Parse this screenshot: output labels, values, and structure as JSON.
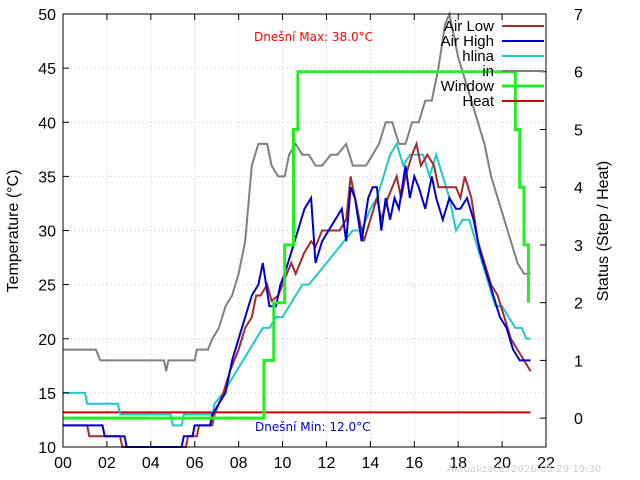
{
  "chart_data": {
    "type": "line",
    "xlabel": "",
    "ylabel": "Temperature (°C)",
    "y2label": "Status (Step / Heat)",
    "xlim": [
      0,
      22
    ],
    "ylim": [
      10,
      50
    ],
    "y2lim": [
      -0.5,
      7
    ],
    "xticks": [
      "00",
      "02",
      "04",
      "06",
      "08",
      "10",
      "12",
      "14",
      "16",
      "18",
      "20",
      "22"
    ],
    "yticks": [
      "10",
      "15",
      "20",
      "25",
      "30",
      "35",
      "40",
      "45",
      "50"
    ],
    "y2ticks": [
      "0",
      "1",
      "2",
      "3",
      "4",
      "5",
      "6",
      "7"
    ],
    "grid": true,
    "legend_position": "top-right",
    "annotations": {
      "max_label": "Dnešní Max: 38.0°C",
      "min_label": "Dnešní Min: 12.0°C",
      "updated": "Aktualizace: 2026-05-29 19:30"
    },
    "colors": {
      "air_low": "#a52a2a",
      "air_high": "#0000cd",
      "hlina": "#20c8c8",
      "in": "#808080",
      "window": "#22ee22",
      "heat": "#cc0000",
      "max_label": "#ff0000",
      "min_label": "#0000cd"
    },
    "series": [
      {
        "name": "Air Low",
        "axis": "y1",
        "key": "air_low",
        "points": [
          [
            0,
            12
          ],
          [
            1.1,
            12
          ],
          [
            1.2,
            11
          ],
          [
            2.6,
            11
          ],
          [
            2.7,
            10
          ],
          [
            4.3,
            10
          ],
          [
            4.4,
            9.8
          ],
          [
            5.6,
            9.8
          ],
          [
            5.7,
            11
          ],
          [
            6.1,
            11
          ],
          [
            6.2,
            12
          ],
          [
            6.8,
            12
          ],
          [
            6.9,
            13
          ],
          [
            7.3,
            15
          ],
          [
            7.6,
            17
          ],
          [
            8.0,
            19
          ],
          [
            8.3,
            21
          ],
          [
            8.6,
            22
          ],
          [
            8.8,
            24
          ],
          [
            9.0,
            24
          ],
          [
            9.3,
            25
          ],
          [
            9.5,
            23.5
          ],
          [
            9.8,
            24
          ],
          [
            10.0,
            25
          ],
          [
            10.2,
            26
          ],
          [
            10.4,
            27
          ],
          [
            10.6,
            26
          ],
          [
            10.8,
            27
          ],
          [
            11.0,
            28
          ],
          [
            11.3,
            29
          ],
          [
            11.5,
            28.5
          ],
          [
            11.8,
            30
          ],
          [
            12.3,
            30
          ],
          [
            12.6,
            30
          ],
          [
            12.9,
            31
          ],
          [
            13.1,
            35
          ],
          [
            13.4,
            32
          ],
          [
            13.7,
            29
          ],
          [
            14.0,
            31
          ],
          [
            14.3,
            33
          ],
          [
            14.5,
            31
          ],
          [
            14.8,
            33
          ],
          [
            15.0,
            34
          ],
          [
            15.2,
            35
          ],
          [
            15.4,
            33
          ],
          [
            15.6,
            35
          ],
          [
            15.9,
            37
          ],
          [
            16.1,
            38
          ],
          [
            16.3,
            36
          ],
          [
            16.6,
            37
          ],
          [
            16.9,
            36
          ],
          [
            17.1,
            34
          ],
          [
            17.4,
            34
          ],
          [
            17.9,
            34
          ],
          [
            18.1,
            33
          ],
          [
            18.3,
            35
          ],
          [
            18.6,
            33
          ],
          [
            18.9,
            29
          ],
          [
            19.2,
            27
          ],
          [
            19.5,
            25
          ],
          [
            19.8,
            24
          ],
          [
            20.1,
            22
          ],
          [
            20.4,
            20
          ],
          [
            20.7,
            19
          ],
          [
            21.0,
            18
          ],
          [
            21.3,
            17
          ]
        ]
      },
      {
        "name": "Air High",
        "axis": "y1",
        "key": "air_high",
        "points": [
          [
            0,
            12
          ],
          [
            1.8,
            12
          ],
          [
            1.9,
            11
          ],
          [
            2.8,
            11
          ],
          [
            2.9,
            10
          ],
          [
            4.3,
            10
          ],
          [
            4.4,
            9.8
          ],
          [
            5.4,
            9.8
          ],
          [
            5.5,
            11
          ],
          [
            5.9,
            11
          ],
          [
            6.0,
            12
          ],
          [
            6.7,
            12
          ],
          [
            6.8,
            13
          ],
          [
            7.1,
            14
          ],
          [
            7.4,
            15
          ],
          [
            7.7,
            18
          ],
          [
            8.0,
            20
          ],
          [
            8.3,
            22
          ],
          [
            8.6,
            24
          ],
          [
            8.9,
            25
          ],
          [
            9.1,
            27
          ],
          [
            9.4,
            23
          ],
          [
            9.7,
            23
          ],
          [
            9.9,
            25
          ],
          [
            10.1,
            26
          ],
          [
            10.4,
            28
          ],
          [
            10.7,
            30
          ],
          [
            11.0,
            32
          ],
          [
            11.3,
            33
          ],
          [
            11.5,
            27
          ],
          [
            11.8,
            29
          ],
          [
            12.1,
            30
          ],
          [
            12.4,
            31
          ],
          [
            12.7,
            32
          ],
          [
            12.9,
            29
          ],
          [
            13.1,
            34
          ],
          [
            13.3,
            33
          ],
          [
            13.6,
            29
          ],
          [
            13.9,
            33
          ],
          [
            14.1,
            34
          ],
          [
            14.3,
            34
          ],
          [
            14.5,
            30
          ],
          [
            14.7,
            33
          ],
          [
            14.9,
            31
          ],
          [
            15.1,
            33
          ],
          [
            15.3,
            32
          ],
          [
            15.6,
            36
          ],
          [
            15.8,
            33
          ],
          [
            16.0,
            35
          ],
          [
            16.2,
            34
          ],
          [
            16.5,
            32
          ],
          [
            16.8,
            35
          ],
          [
            17.0,
            33
          ],
          [
            17.3,
            31
          ],
          [
            17.6,
            33
          ],
          [
            17.9,
            32
          ],
          [
            18.1,
            32
          ],
          [
            18.4,
            33
          ],
          [
            18.7,
            31
          ],
          [
            19.0,
            28
          ],
          [
            19.3,
            26
          ],
          [
            19.6,
            24
          ],
          [
            19.9,
            22
          ],
          [
            20.2,
            21
          ],
          [
            20.5,
            19
          ],
          [
            20.8,
            18
          ],
          [
            21.1,
            18
          ],
          [
            21.3,
            18
          ]
        ]
      },
      {
        "name": "hlina",
        "axis": "y1",
        "key": "hlina",
        "points": [
          [
            0,
            15
          ],
          [
            1.0,
            15
          ],
          [
            1.1,
            14
          ],
          [
            2.5,
            14
          ],
          [
            2.6,
            13
          ],
          [
            4.9,
            13
          ],
          [
            5.0,
            12
          ],
          [
            5.4,
            12
          ],
          [
            5.5,
            13
          ],
          [
            6.8,
            13
          ],
          [
            6.9,
            14
          ],
          [
            7.3,
            15
          ],
          [
            7.6,
            16
          ],
          [
            7.9,
            17
          ],
          [
            8.2,
            18
          ],
          [
            8.5,
            19
          ],
          [
            8.8,
            20
          ],
          [
            9.1,
            21
          ],
          [
            9.4,
            21
          ],
          [
            9.7,
            22
          ],
          [
            10.0,
            22
          ],
          [
            10.3,
            23
          ],
          [
            10.6,
            24
          ],
          [
            10.9,
            25
          ],
          [
            11.2,
            25
          ],
          [
            11.6,
            26
          ],
          [
            12.0,
            27
          ],
          [
            12.4,
            28
          ],
          [
            12.8,
            29
          ],
          [
            13.2,
            30
          ],
          [
            13.6,
            30
          ],
          [
            14.0,
            32
          ],
          [
            14.3,
            33
          ],
          [
            14.6,
            35
          ],
          [
            14.9,
            37
          ],
          [
            15.2,
            38
          ],
          [
            15.5,
            36
          ],
          [
            15.8,
            37
          ],
          [
            16.1,
            37
          ],
          [
            16.4,
            37
          ],
          [
            16.7,
            35
          ],
          [
            17.0,
            37
          ],
          [
            17.3,
            35
          ],
          [
            17.6,
            33
          ],
          [
            17.9,
            30
          ],
          [
            18.2,
            31
          ],
          [
            18.5,
            31
          ],
          [
            18.8,
            29
          ],
          [
            19.1,
            27
          ],
          [
            19.4,
            25
          ],
          [
            19.7,
            23
          ],
          [
            20.0,
            23
          ],
          [
            20.3,
            22
          ],
          [
            20.6,
            21
          ],
          [
            20.9,
            21
          ],
          [
            21.1,
            20
          ],
          [
            21.3,
            20
          ]
        ]
      },
      {
        "name": "in",
        "axis": "y1",
        "key": "in",
        "points": [
          [
            0,
            19
          ],
          [
            1.5,
            19
          ],
          [
            1.7,
            18
          ],
          [
            4.6,
            18
          ],
          [
            4.7,
            17
          ],
          [
            4.8,
            18
          ],
          [
            6.0,
            18
          ],
          [
            6.1,
            19
          ],
          [
            6.6,
            19
          ],
          [
            6.8,
            20
          ],
          [
            7.1,
            21
          ],
          [
            7.4,
            23
          ],
          [
            7.7,
            24
          ],
          [
            8.0,
            26
          ],
          [
            8.3,
            29
          ],
          [
            8.6,
            36
          ],
          [
            8.9,
            38
          ],
          [
            9.3,
            38
          ],
          [
            9.5,
            36
          ],
          [
            9.8,
            35
          ],
          [
            10.1,
            35
          ],
          [
            10.3,
            37
          ],
          [
            10.6,
            38
          ],
          [
            10.9,
            37
          ],
          [
            11.2,
            37
          ],
          [
            11.5,
            36
          ],
          [
            11.8,
            36
          ],
          [
            12.2,
            37
          ],
          [
            12.5,
            37
          ],
          [
            12.9,
            38
          ],
          [
            13.2,
            36
          ],
          [
            13.5,
            36
          ],
          [
            13.8,
            36
          ],
          [
            14.1,
            37
          ],
          [
            14.4,
            38
          ],
          [
            14.7,
            40
          ],
          [
            15.0,
            40
          ],
          [
            15.3,
            38
          ],
          [
            15.6,
            38
          ],
          [
            15.9,
            40
          ],
          [
            16.2,
            40
          ],
          [
            16.5,
            42
          ],
          [
            16.8,
            42
          ],
          [
            17.1,
            45
          ],
          [
            17.4,
            49
          ],
          [
            17.6,
            50
          ],
          [
            17.8,
            48
          ],
          [
            18.0,
            46
          ],
          [
            18.3,
            44
          ],
          [
            18.6,
            42
          ],
          [
            18.9,
            40
          ],
          [
            19.2,
            38
          ],
          [
            19.5,
            35
          ],
          [
            19.8,
            33
          ],
          [
            20.1,
            31
          ],
          [
            20.4,
            29
          ],
          [
            20.7,
            27
          ],
          [
            21.0,
            26
          ],
          [
            21.3,
            26
          ]
        ]
      },
      {
        "name": "Window",
        "axis": "y2",
        "key": "window",
        "points": [
          [
            0,
            0
          ],
          [
            9.15,
            0
          ],
          [
            9.15,
            1
          ],
          [
            9.6,
            1
          ],
          [
            9.6,
            2
          ],
          [
            10.1,
            2
          ],
          [
            10.1,
            3
          ],
          [
            10.5,
            3
          ],
          [
            10.5,
            5
          ],
          [
            10.7,
            5
          ],
          [
            10.7,
            6
          ],
          [
            20.6,
            6
          ],
          [
            20.6,
            5
          ],
          [
            20.8,
            5
          ],
          [
            20.8,
            4
          ],
          [
            21.0,
            4
          ],
          [
            21.0,
            3
          ],
          [
            21.2,
            3
          ],
          [
            21.2,
            2
          ]
        ]
      },
      {
        "name": "Heat",
        "axis": "y2",
        "key": "heat",
        "points": [
          [
            0,
            0.1
          ],
          [
            21.3,
            0.1
          ]
        ]
      }
    ]
  }
}
